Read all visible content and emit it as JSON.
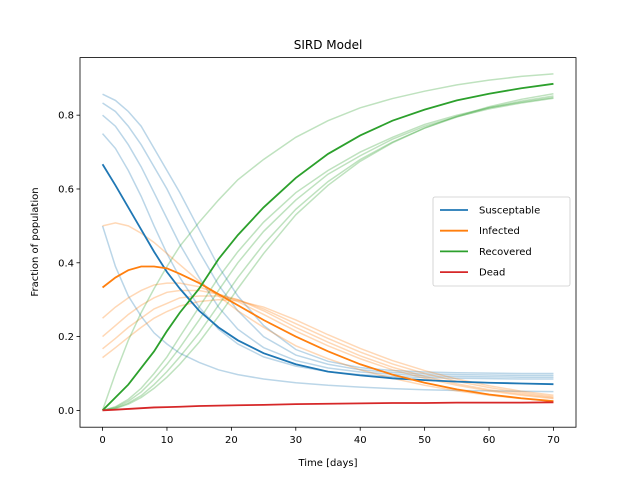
{
  "chart_data": {
    "type": "line",
    "title": "SIRD Model",
    "xlabel": "Time [days]",
    "ylabel": "Fraction of population",
    "xlim": [
      -3.5,
      73.5
    ],
    "ylim": [
      -0.0455,
      0.956
    ],
    "xticks": [
      0,
      10,
      20,
      30,
      40,
      50,
      60,
      70
    ],
    "yticks": [
      0.0,
      0.2,
      0.4,
      0.6,
      0.8
    ],
    "ytick_labels": [
      "0.0",
      "0.2",
      "0.4",
      "0.6",
      "0.8"
    ],
    "grid": false,
    "legend_position": "center-right",
    "x": [
      0,
      2,
      4,
      6,
      8,
      10,
      12,
      15,
      18,
      21,
      25,
      30,
      35,
      40,
      45,
      50,
      55,
      60,
      65,
      70
    ],
    "series": [
      {
        "name": "Susceptable",
        "color": "#1f77b4",
        "values": [
          0.667,
          0.61,
          0.55,
          0.49,
          0.43,
          0.375,
          0.33,
          0.27,
          0.225,
          0.19,
          0.155,
          0.125,
          0.105,
          0.095,
          0.087,
          0.082,
          0.078,
          0.075,
          0.073,
          0.071
        ]
      },
      {
        "name": "Infected",
        "color": "#ff7f0e",
        "values": [
          0.333,
          0.36,
          0.38,
          0.39,
          0.39,
          0.385,
          0.37,
          0.345,
          0.315,
          0.285,
          0.245,
          0.2,
          0.16,
          0.125,
          0.097,
          0.075,
          0.057,
          0.043,
          0.033,
          0.025
        ]
      },
      {
        "name": "Recovered",
        "color": "#2ca02c",
        "values": [
          0.0,
          0.035,
          0.07,
          0.115,
          0.16,
          0.215,
          0.265,
          0.33,
          0.41,
          0.475,
          0.55,
          0.63,
          0.695,
          0.745,
          0.785,
          0.815,
          0.84,
          0.858,
          0.873,
          0.885
        ]
      },
      {
        "name": "Dead",
        "color": "#d62728",
        "values": [
          0.0,
          0.002,
          0.004,
          0.006,
          0.008,
          0.009,
          0.01,
          0.012,
          0.013,
          0.014,
          0.015,
          0.017,
          0.018,
          0.019,
          0.02,
          0.02,
          0.021,
          0.021,
          0.021,
          0.022
        ]
      }
    ],
    "faint_series": [
      {
        "group": "Susceptable",
        "color": "#1f77b4",
        "values": [
          0.5,
          0.39,
          0.31,
          0.255,
          0.21,
          0.18,
          0.155,
          0.13,
          0.11,
          0.097,
          0.085,
          0.075,
          0.068,
          0.063,
          0.059,
          0.056,
          0.054,
          0.053,
          0.052,
          0.051
        ]
      },
      {
        "group": "Susceptable",
        "color": "#1f77b4",
        "values": [
          0.75,
          0.71,
          0.65,
          0.58,
          0.5,
          0.425,
          0.36,
          0.28,
          0.22,
          0.18,
          0.145,
          0.12,
          0.105,
          0.097,
          0.092,
          0.089,
          0.087,
          0.086,
          0.085,
          0.085
        ]
      },
      {
        "group": "Susceptable",
        "color": "#1f77b4",
        "values": [
          0.8,
          0.77,
          0.72,
          0.66,
          0.59,
          0.52,
          0.45,
          0.36,
          0.28,
          0.22,
          0.17,
          0.135,
          0.115,
          0.104,
          0.098,
          0.094,
          0.092,
          0.091,
          0.09,
          0.09
        ]
      },
      {
        "group": "Susceptable",
        "color": "#1f77b4",
        "values": [
          0.833,
          0.81,
          0.77,
          0.72,
          0.66,
          0.6,
          0.53,
          0.43,
          0.34,
          0.27,
          0.2,
          0.15,
          0.125,
          0.11,
          0.103,
          0.099,
          0.097,
          0.096,
          0.095,
          0.095
        ]
      },
      {
        "group": "Susceptable",
        "color": "#1f77b4",
        "values": [
          0.857,
          0.84,
          0.81,
          0.77,
          0.71,
          0.65,
          0.59,
          0.49,
          0.39,
          0.31,
          0.23,
          0.165,
          0.133,
          0.116,
          0.108,
          0.104,
          0.102,
          0.101,
          0.1,
          0.1
        ]
      },
      {
        "group": "Infected",
        "color": "#ff7f0e",
        "values": [
          0.5,
          0.508,
          0.5,
          0.48,
          0.455,
          0.425,
          0.395,
          0.35,
          0.31,
          0.27,
          0.225,
          0.175,
          0.14,
          0.11,
          0.087,
          0.068,
          0.053,
          0.041,
          0.032,
          0.025
        ]
      },
      {
        "group": "Infected",
        "color": "#ff7f0e",
        "values": [
          0.25,
          0.28,
          0.305,
          0.325,
          0.34,
          0.345,
          0.345,
          0.335,
          0.315,
          0.295,
          0.26,
          0.215,
          0.175,
          0.14,
          0.11,
          0.087,
          0.068,
          0.053,
          0.041,
          0.032
        ]
      },
      {
        "group": "Infected",
        "color": "#ff7f0e",
        "values": [
          0.2,
          0.23,
          0.26,
          0.285,
          0.305,
          0.32,
          0.325,
          0.325,
          0.315,
          0.3,
          0.27,
          0.225,
          0.185,
          0.148,
          0.117,
          0.092,
          0.072,
          0.056,
          0.044,
          0.034
        ]
      },
      {
        "group": "Infected",
        "color": "#ff7f0e",
        "values": [
          0.167,
          0.195,
          0.225,
          0.25,
          0.275,
          0.29,
          0.305,
          0.31,
          0.31,
          0.3,
          0.275,
          0.235,
          0.195,
          0.158,
          0.126,
          0.1,
          0.079,
          0.062,
          0.048,
          0.037
        ]
      },
      {
        "group": "Infected",
        "color": "#ff7f0e",
        "values": [
          0.143,
          0.17,
          0.198,
          0.225,
          0.25,
          0.268,
          0.283,
          0.295,
          0.3,
          0.297,
          0.28,
          0.245,
          0.205,
          0.168,
          0.135,
          0.108,
          0.085,
          0.067,
          0.052,
          0.041
        ]
      },
      {
        "group": "Recovered",
        "color": "#2ca02c",
        "values": [
          0.0,
          0.1,
          0.19,
          0.265,
          0.33,
          0.39,
          0.445,
          0.51,
          0.57,
          0.625,
          0.68,
          0.74,
          0.785,
          0.82,
          0.845,
          0.865,
          0.882,
          0.895,
          0.905,
          0.912
        ]
      },
      {
        "group": "Recovered",
        "color": "#2ca02c",
        "values": [
          0.0,
          0.01,
          0.03,
          0.06,
          0.1,
          0.145,
          0.2,
          0.28,
          0.36,
          0.43,
          0.51,
          0.59,
          0.65,
          0.7,
          0.74,
          0.775,
          0.8,
          0.82,
          0.835,
          0.848
        ]
      },
      {
        "group": "Recovered",
        "color": "#2ca02c",
        "values": [
          0.0,
          0.008,
          0.025,
          0.05,
          0.085,
          0.125,
          0.17,
          0.245,
          0.325,
          0.4,
          0.485,
          0.57,
          0.64,
          0.69,
          0.735,
          0.77,
          0.796,
          0.817,
          0.833,
          0.846
        ]
      },
      {
        "group": "Recovered",
        "color": "#2ca02c",
        "values": [
          0.0,
          0.006,
          0.02,
          0.04,
          0.07,
          0.105,
          0.145,
          0.21,
          0.285,
          0.36,
          0.45,
          0.545,
          0.62,
          0.68,
          0.727,
          0.765,
          0.795,
          0.82,
          0.838,
          0.852
        ]
      },
      {
        "group": "Recovered",
        "color": "#2ca02c",
        "values": [
          0.0,
          0.005,
          0.017,
          0.035,
          0.06,
          0.09,
          0.125,
          0.185,
          0.255,
          0.33,
          0.425,
          0.53,
          0.61,
          0.675,
          0.725,
          0.765,
          0.797,
          0.823,
          0.843,
          0.858
        ]
      }
    ]
  }
}
